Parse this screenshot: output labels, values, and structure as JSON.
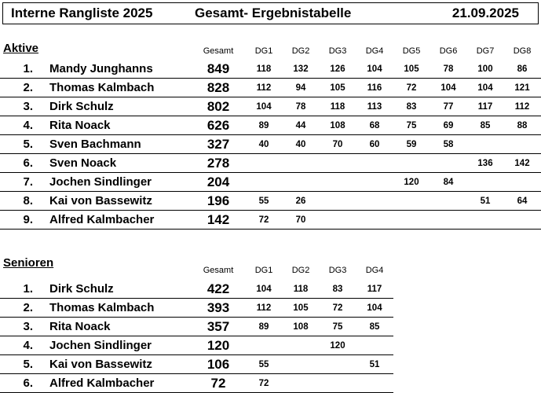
{
  "header": {
    "left": "Interne Rangliste 2025",
    "middle": "Gesamt- Ergebnistabelle",
    "date": "21.09.2025"
  },
  "aktive": {
    "title": "Aktive",
    "columns": [
      "Gesamt",
      "DG1",
      "DG2",
      "DG3",
      "DG4",
      "DG5",
      "DG6",
      "DG7",
      "DG8"
    ],
    "rows": [
      {
        "rank": "1.",
        "name": "Mandy Junghanns",
        "total": "849",
        "dg": [
          "118",
          "132",
          "126",
          "104",
          "105",
          "78",
          "100",
          "86"
        ]
      },
      {
        "rank": "2.",
        "name": "Thomas Kalmbach",
        "total": "828",
        "dg": [
          "112",
          "94",
          "105",
          "116",
          "72",
          "104",
          "104",
          "121"
        ]
      },
      {
        "rank": "3.",
        "name": "Dirk Schulz",
        "total": "802",
        "dg": [
          "104",
          "78",
          "118",
          "113",
          "83",
          "77",
          "117",
          "112"
        ]
      },
      {
        "rank": "4.",
        "name": "Rita Noack",
        "total": "626",
        "dg": [
          "89",
          "44",
          "108",
          "68",
          "75",
          "69",
          "85",
          "88"
        ]
      },
      {
        "rank": "5.",
        "name": "Sven Bachmann",
        "total": "327",
        "dg": [
          "40",
          "40",
          "70",
          "60",
          "59",
          "58",
          "",
          ""
        ]
      },
      {
        "rank": "6.",
        "name": "Sven Noack",
        "total": "278",
        "dg": [
          "",
          "",
          "",
          "",
          "",
          "",
          "136",
          "142"
        ]
      },
      {
        "rank": "7.",
        "name": "Jochen Sindlinger",
        "total": "204",
        "dg": [
          "",
          "",
          "",
          "",
          "120",
          "84",
          "",
          ""
        ]
      },
      {
        "rank": "8.",
        "name": "Kai von Bassewitz",
        "total": "196",
        "dg": [
          "55",
          "26",
          "",
          "",
          "",
          "",
          "51",
          "64"
        ]
      },
      {
        "rank": "9.",
        "name": "Alfred Kalmbacher",
        "total": "142",
        "dg": [
          "72",
          "70",
          "",
          "",
          "",
          "",
          "",
          ""
        ]
      }
    ]
  },
  "senioren": {
    "title": "Senioren",
    "columns": [
      "Gesamt",
      "DG1",
      "DG2",
      "DG3",
      "DG4"
    ],
    "rows": [
      {
        "rank": "1.",
        "name": "Dirk Schulz",
        "total": "422",
        "dg": [
          "104",
          "118",
          "83",
          "117"
        ]
      },
      {
        "rank": "2.",
        "name": "Thomas Kalmbach",
        "total": "393",
        "dg": [
          "112",
          "105",
          "72",
          "104"
        ]
      },
      {
        "rank": "3.",
        "name": "Rita Noack",
        "total": "357",
        "dg": [
          "89",
          "108",
          "75",
          "85"
        ]
      },
      {
        "rank": "4.",
        "name": "Jochen Sindlinger",
        "total": "120",
        "dg": [
          "",
          "",
          "120",
          ""
        ]
      },
      {
        "rank": "5.",
        "name": "Kai von Bassewitz",
        "total": "106",
        "dg": [
          "55",
          "",
          "",
          "51"
        ]
      },
      {
        "rank": "6.",
        "name": "Alfred Kalmbacher",
        "total": "72",
        "dg": [
          "72",
          "",
          "",
          ""
        ]
      }
    ]
  }
}
